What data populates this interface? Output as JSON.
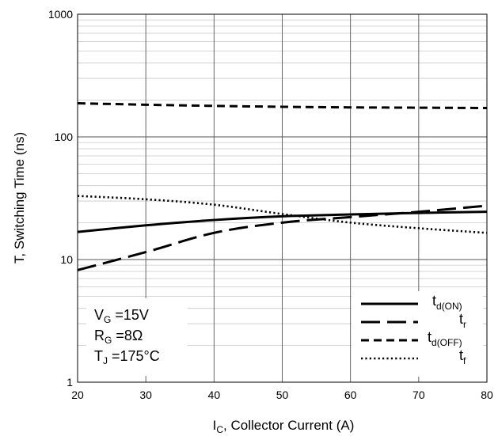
{
  "chart_data": {
    "type": "line",
    "title": "",
    "xlabel": {
      "main": "I",
      "sub": "C",
      "rest": ", Collector Current (A)"
    },
    "ylabel": "T, Switching Time (ns)",
    "xlim": [
      20,
      80
    ],
    "ylim": [
      1,
      1000
    ],
    "yscale": "log",
    "grid": true,
    "x_ticks": [
      "20",
      "30",
      "40",
      "50",
      "60",
      "70",
      "80"
    ],
    "y_ticks": [
      "1",
      "10",
      "100",
      "1000"
    ],
    "annotations": [
      {
        "main": "V",
        "sub": "G",
        "rest": " =15V"
      },
      {
        "main": "R",
        "sub": "G",
        "rest": " =8Ω"
      },
      {
        "main": "T",
        "sub": "J",
        "rest": " =175°C"
      }
    ],
    "legend_position": "bottom-right",
    "series": [
      {
        "name": {
          "main": "t",
          "sub": "d(ON)"
        },
        "style": "solid",
        "x": [
          20,
          30,
          40,
          50,
          60,
          70,
          80
        ],
        "y": [
          16.8,
          19,
          21,
          22.5,
          23.3,
          24,
          24.5
        ]
      },
      {
        "name": {
          "main": "t",
          "sub": "r"
        },
        "style": "longdash",
        "x": [
          20,
          30,
          40,
          50,
          60,
          70,
          80
        ],
        "y": [
          8.2,
          11.5,
          16.5,
          20,
          22.2,
          24.5,
          27.5
        ]
      },
      {
        "name": {
          "main": "t",
          "sub": "d(OFF)"
        },
        "style": "shortdash",
        "x": [
          20,
          30,
          40,
          50,
          60,
          70,
          80
        ],
        "y": [
          188,
          183,
          179,
          176,
          174,
          173,
          172
        ]
      },
      {
        "name": {
          "main": "t",
          "sub": "f"
        },
        "style": "dotted",
        "x": [
          20,
          30,
          40,
          50,
          60,
          70,
          80
        ],
        "y": [
          33,
          31,
          28,
          23.5,
          20,
          18,
          16.5
        ]
      }
    ]
  }
}
